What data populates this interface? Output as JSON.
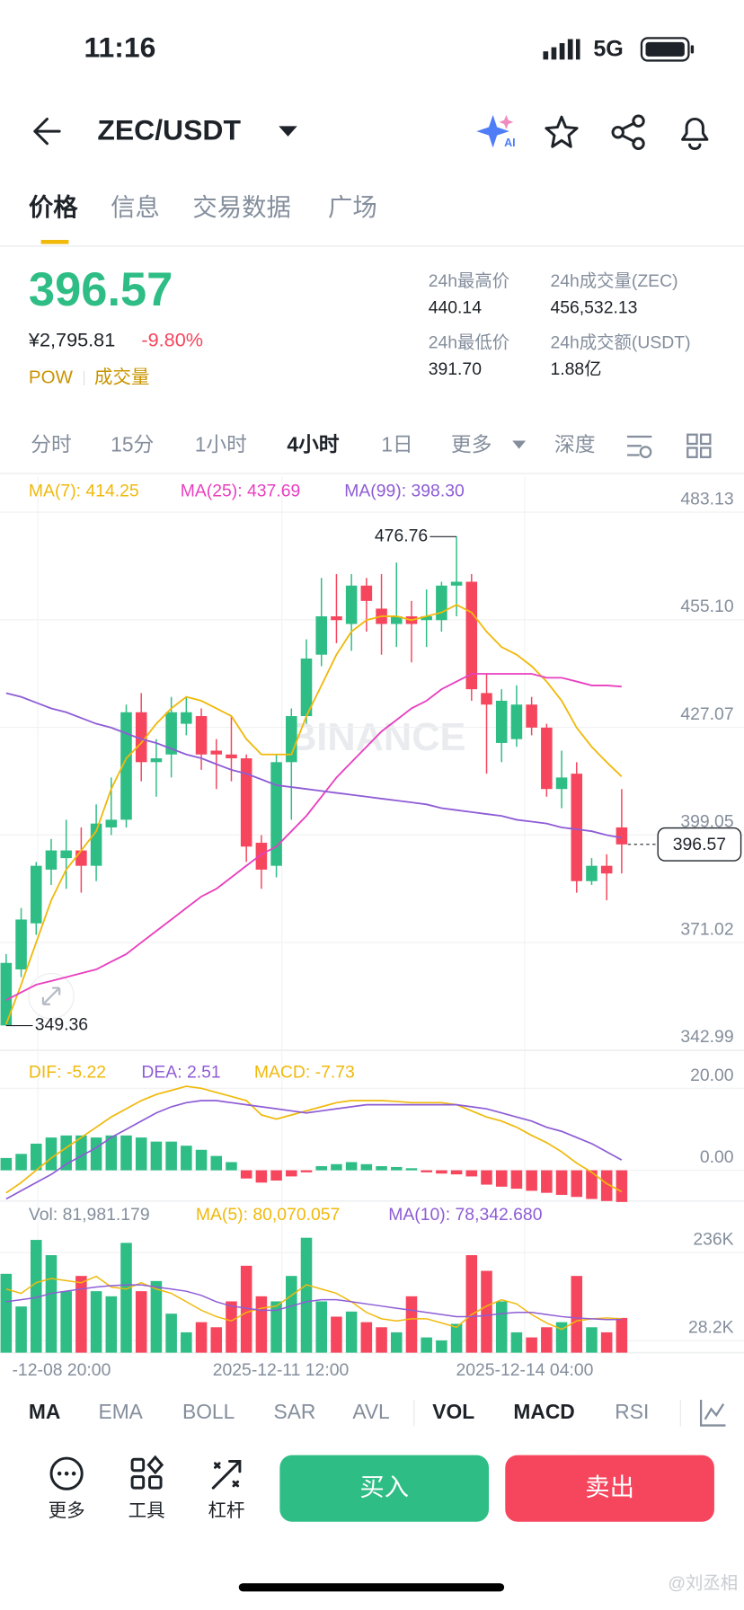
{
  "status_bar": {
    "time": "11:16",
    "network": "5G"
  },
  "header": {
    "pair": "ZEC/USDT",
    "ai_badge": "AI"
  },
  "tabs": [
    "价格",
    "信息",
    "交易数据",
    "广场"
  ],
  "summary": {
    "price": "396.57",
    "price_cny": "¥2,795.81",
    "change": "-9.80%",
    "tags": [
      "POW",
      "成交量"
    ],
    "stats": [
      {
        "label": "24h最高价",
        "value": "440.14"
      },
      {
        "label": "24h成交量(ZEC)",
        "value": "456,532.13"
      },
      {
        "label": "24h最低价",
        "value": "391.70"
      },
      {
        "label": "24h成交额(USDT)",
        "value": "1.88亿"
      }
    ]
  },
  "intervals": [
    "分时",
    "15分",
    "1小时",
    "4小时",
    "1日",
    "更多",
    "深度"
  ],
  "chart": {
    "type": "candlestick",
    "watermark": "BINANCE",
    "up_color": "#2ebd85",
    "down_color": "#f6465d",
    "grid": true,
    "ylim": [
      342.9,
      492.4
    ],
    "yticks": [
      483.13,
      {
        "value": 455.1,
        "label": "455.10"
      },
      427.07,
      399.05,
      371.02,
      342.99
    ],
    "open": [
      349.4,
      364,
      376,
      390,
      393,
      395,
      391,
      401,
      403,
      431,
      418,
      420,
      428,
      430,
      421,
      420,
      419,
      397,
      391,
      418,
      430,
      446,
      456,
      454,
      464,
      458,
      454,
      456,
      455,
      455,
      464,
      465,
      436,
      423,
      424,
      433,
      427,
      411,
      415,
      387,
      391,
      401
    ],
    "high": [
      368,
      380,
      392,
      398,
      403,
      401,
      407,
      414,
      433,
      436,
      424,
      435,
      435,
      432,
      424,
      430,
      420,
      399,
      420,
      432,
      450,
      466,
      467,
      467,
      466,
      467,
      470,
      460,
      463,
      465,
      476.76,
      467,
      441,
      437,
      438,
      435,
      428,
      421,
      418,
      393,
      394,
      411
    ],
    "low": [
      349.36,
      362,
      373,
      386,
      385,
      384,
      387,
      399,
      401,
      413,
      409,
      414,
      425,
      416,
      411,
      413,
      392,
      385,
      388,
      403,
      428,
      443,
      449,
      447,
      452,
      446,
      448,
      444,
      448,
      452,
      456,
      434,
      415,
      418,
      422,
      425,
      409,
      406,
      384,
      386,
      382,
      389
    ],
    "close": [
      365.7,
      377,
      391,
      395,
      395,
      391,
      402,
      403,
      431,
      418,
      419,
      431,
      431,
      420,
      420,
      419,
      396,
      390,
      418,
      430,
      445,
      456,
      455,
      464,
      460,
      454,
      456,
      454,
      456,
      464,
      465,
      437,
      433,
      434,
      433,
      427,
      411,
      414,
      387,
      391,
      389,
      396.57
    ],
    "ma": [
      {
        "name": "MA(7): 414.25",
        "color": "#f0b90b",
        "values": [
          349.7,
          360,
          371,
          382,
          390,
          395,
          400,
          411,
          419,
          423,
          428,
          432,
          435,
          434,
          432,
          430,
          424,
          420,
          420,
          420,
          430,
          438,
          446,
          452,
          455,
          456,
          456,
          455,
          456,
          457,
          459,
          457,
          452,
          448,
          446,
          443,
          439,
          434,
          427,
          422,
          418,
          414.25
        ]
      },
      {
        "name": "MA(25): 437.69",
        "color": "#e83fbf",
        "values": [
          356,
          358,
          360,
          361,
          362,
          363,
          364,
          366,
          368,
          371,
          374,
          377,
          380,
          383,
          385,
          388,
          391,
          394,
          396,
          400,
          404,
          409,
          414,
          418,
          422,
          426,
          429,
          432,
          434,
          437,
          439,
          441,
          441,
          441,
          441,
          441,
          440,
          440,
          439,
          438,
          438,
          437.69
        ]
      },
      {
        "name": "MA(99): 398.30",
        "color": "#8e5cd6",
        "values": [
          436,
          435,
          433.5,
          432,
          431,
          429.5,
          428,
          427,
          425.5,
          424,
          423,
          421.5,
          420,
          419,
          417.5,
          416,
          415,
          413.5,
          412,
          411.5,
          411,
          410.5,
          410,
          409.5,
          409,
          408.5,
          408,
          407.5,
          407,
          406,
          405.5,
          405,
          404.5,
          404,
          403,
          402.5,
          402,
          401,
          400.5,
          400,
          399,
          398.3
        ]
      }
    ],
    "xticks": [
      "-12-08 20:00",
      "2025-12-11 12:00",
      "2025-12-14 04:00"
    ],
    "macd": {
      "ylim": [
        -8,
        28
      ],
      "yticks": [
        {
          "value": 20,
          "label": "20.00"
        },
        {
          "value": 0,
          "label": "0.00"
        }
      ],
      "series": [
        {
          "name": "DIF: -5.22",
          "color": "#f0b90b",
          "values": [
            -5.5,
            -3,
            0,
            3,
            5.5,
            8,
            10.5,
            13,
            15,
            17,
            18.5,
            19.5,
            20.5,
            20,
            19,
            18,
            17,
            13.5,
            12.5,
            13.5,
            14.5,
            15.5,
            16.5,
            17,
            17,
            17,
            16.8,
            16.5,
            16.5,
            16.5,
            16,
            14.5,
            13,
            12,
            10.5,
            8.5,
            6.75,
            4.5,
            1.75,
            -0.5,
            -3.25,
            -5.22
          ]
        },
        {
          "name": "DEA: 2.51",
          "color": "#8e5cd6",
          "values": [
            -7,
            -5,
            -3,
            -1,
            1.5,
            3.5,
            5.5,
            8,
            10,
            12,
            14,
            15.5,
            16.5,
            17,
            17,
            16.5,
            16,
            15.5,
            15,
            14.5,
            14,
            14.5,
            15,
            15.5,
            16,
            16,
            16,
            16,
            16,
            16,
            16,
            15.5,
            15,
            14,
            13,
            12,
            10.5,
            9.5,
            8,
            6.5,
            4.5,
            2.51
          ]
        }
      ],
      "histogram_name": "MACD: -7.73",
      "histogram": [
        3,
        4,
        6.5,
        8,
        8.5,
        8.5,
        8,
        8.5,
        8.5,
        8,
        7,
        7,
        6,
        5,
        3.5,
        2,
        -2,
        -3,
        -2.5,
        -1.5,
        -0.5,
        1,
        1.5,
        2,
        1.5,
        1,
        0.8,
        0.5,
        -0.5,
        -0.8,
        -1,
        -1.5,
        -3.5,
        -4,
        -4.5,
        -5,
        -5.5,
        -6,
        -6.5,
        -7,
        -7.5,
        -7.73
      ]
    },
    "volume": {
      "name": "Vol: 81,981.179",
      "ylim": [
        0,
        290000
      ],
      "yticks": [
        {
          "value": 236000,
          "label": "236K"
        },
        {
          "value": 28200,
          "label": "28.2K"
        }
      ],
      "values": [
        186000,
        109000,
        266000,
        230000,
        145000,
        181000,
        145000,
        133000,
        259000,
        145000,
        169000,
        92000,
        48000,
        72000,
        60000,
        121000,
        205000,
        133000,
        121000,
        181000,
        271000,
        121000,
        85000,
        97000,
        72000,
        60000,
        48000,
        133000,
        36000,
        29000,
        68000,
        230000,
        193000,
        121000,
        48000,
        36000,
        60000,
        72000,
        181000,
        60000,
        48000,
        81981.179
      ],
      "series": [
        {
          "name": "MA(5): 80,070.057",
          "color": "#f0b90b",
          "values": [
            150000,
            140000,
            165000,
            175000,
            170000,
            165000,
            180000,
            155000,
            150000,
            165000,
            150000,
            140000,
            120000,
            100000,
            85000,
            75000,
            95000,
            105000,
            110000,
            135000,
            160000,
            150000,
            140000,
            120000,
            95000,
            80000,
            75000,
            80000,
            80000,
            70000,
            60000,
            90000,
            110000,
            125000,
            115000,
            90000,
            70000,
            55000,
            75000,
            80000,
            82000,
            80070.057
          ]
        },
        {
          "name": "MA(10): 78,342.680",
          "color": "#8e5cd6",
          "values": [
            120000,
            125000,
            130000,
            140000,
            145000,
            150000,
            155000,
            158000,
            160000,
            160000,
            155000,
            150000,
            145000,
            135000,
            120000,
            110000,
            105000,
            100000,
            100000,
            110000,
            120000,
            125000,
            125000,
            120000,
            115000,
            110000,
            105000,
            100000,
            95000,
            90000,
            85000,
            85000,
            88000,
            92000,
            95000,
            95000,
            90000,
            85000,
            82000,
            80000,
            78000,
            78342.68
          ]
        }
      ]
    }
  },
  "indicator_tabs": [
    "MA",
    "EMA",
    "BOLL",
    "SAR",
    "AVL",
    "VOL",
    "MACD",
    "RSI"
  ],
  "actions": [
    "更多",
    "工具",
    "杠杆"
  ],
  "buy": "买入",
  "sell": "卖出",
  "watermark": "@刘丞相"
}
